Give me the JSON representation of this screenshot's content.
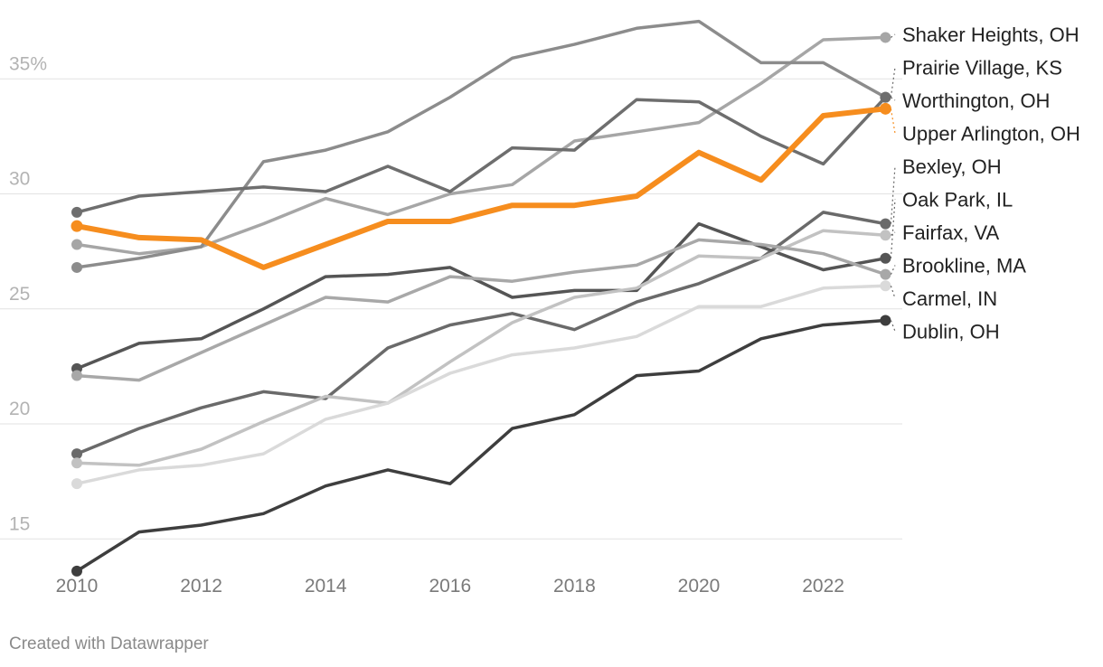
{
  "chart_data": {
    "type": "line",
    "title": "",
    "xlabel": "",
    "ylabel": "",
    "x": [
      2010,
      2011,
      2012,
      2013,
      2014,
      2015,
      2016,
      2017,
      2018,
      2019,
      2020,
      2021,
      2022,
      2023
    ],
    "xticks": [
      "2010",
      "2012",
      "2014",
      "2016",
      "2018",
      "2020",
      "2022"
    ],
    "yticks": [
      {
        "value": 15,
        "label": "15"
      },
      {
        "value": 20,
        "label": "20"
      },
      {
        "value": 25,
        "label": "25"
      },
      {
        "value": 30,
        "label": "30"
      },
      {
        "value": 35,
        "label": "35%"
      }
    ],
    "ylim": [
      14.5,
      37.5
    ],
    "grid": "horizontal",
    "legend": "direct labels at right",
    "series": [
      {
        "name": "Shaker Heights, OH",
        "color": "#a6a6a6",
        "values": [
          27.8,
          27.4,
          27.7,
          28.7,
          29.8,
          29.1,
          30.0,
          30.4,
          32.3,
          32.7,
          33.1,
          34.8,
          36.7,
          36.8
        ]
      },
      {
        "name": "Prairie Village, KS",
        "color": "#8c8c8c",
        "values": [
          26.8,
          27.2,
          27.7,
          31.4,
          31.9,
          32.7,
          34.2,
          35.9,
          36.5,
          37.2,
          37.5,
          35.7,
          35.7,
          34.2
        ]
      },
      {
        "name": "Worthington, OH",
        "color": "#6e6e6e",
        "values": [
          29.2,
          29.9,
          30.1,
          30.3,
          30.1,
          31.2,
          30.1,
          32.0,
          31.9,
          34.1,
          34.0,
          32.5,
          31.3,
          34.2
        ]
      },
      {
        "name": "Upper Arlington, OH",
        "color": "#f68d1e",
        "highlight": true,
        "values": [
          28.6,
          28.1,
          28.0,
          26.8,
          27.8,
          28.8,
          28.8,
          29.5,
          29.5,
          29.9,
          31.8,
          30.6,
          33.4,
          33.7
        ]
      },
      {
        "name": "Bexley, OH",
        "color": "#6a6a6a",
        "values": [
          18.7,
          19.8,
          20.7,
          21.4,
          21.1,
          23.3,
          24.3,
          24.8,
          24.1,
          25.3,
          26.1,
          27.2,
          29.2,
          28.7
        ]
      },
      {
        "name": "Oak Park, IL",
        "color": "#555555",
        "values": [
          22.4,
          23.5,
          23.7,
          25.0,
          26.4,
          26.5,
          26.8,
          25.5,
          25.8,
          25.8,
          28.7,
          27.7,
          26.7,
          27.2
        ]
      },
      {
        "name": "Fairfax, VA",
        "color": "#c2c2c2",
        "values": [
          18.3,
          18.2,
          18.9,
          20.1,
          21.2,
          20.9,
          22.7,
          24.4,
          25.5,
          25.9,
          27.3,
          27.2,
          28.4,
          28.2
        ]
      },
      {
        "name": "Brookline, MA",
        "color": "#a8a8a8",
        "values": [
          22.1,
          21.9,
          23.1,
          24.3,
          25.5,
          25.3,
          26.4,
          26.2,
          26.6,
          26.9,
          28.0,
          27.8,
          27.4,
          26.5
        ]
      },
      {
        "name": "Carmel, IN",
        "color": "#dadada",
        "values": [
          17.4,
          18.0,
          18.2,
          18.7,
          20.2,
          20.9,
          22.2,
          23.0,
          23.3,
          23.8,
          25.1,
          25.1,
          25.9,
          26.0
        ]
      },
      {
        "name": "Dublin, OH",
        "color": "#3e3e3e",
        "values": [
          13.6,
          15.3,
          15.6,
          16.1,
          17.3,
          18.0,
          17.4,
          19.8,
          20.4,
          22.1,
          22.3,
          23.7,
          24.3,
          24.5
        ]
      }
    ]
  },
  "footer": {
    "credit": "Created with Datawrapper"
  }
}
